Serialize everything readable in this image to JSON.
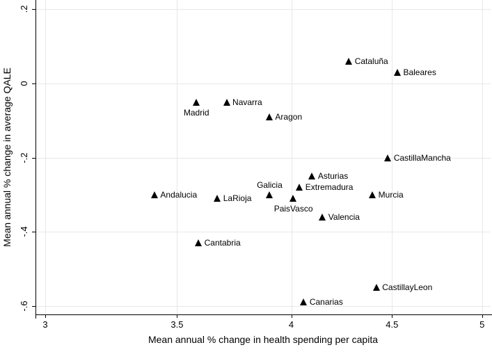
{
  "chart_data": {
    "type": "scatter",
    "title": "",
    "xlabel": "Mean annual % change in health spending per capita",
    "ylabel": "Mean annual % change in average QALE",
    "xscale": "log",
    "yscale": "linear",
    "xlim": [
      2.966,
      5.05
    ],
    "ylim": [
      -0.623,
      0.225
    ],
    "grid": true,
    "gridline_color": "#e7e7e7",
    "axis_color": "#000000",
    "marker": "triangle-filled-icon",
    "marker_color": "#000000",
    "x_ticks": [
      {
        "value": 3,
        "label": "3"
      },
      {
        "value": 3.5,
        "label": "3.5"
      },
      {
        "value": 4,
        "label": "4"
      },
      {
        "value": 4.5,
        "label": "4.5"
      },
      {
        "value": 5,
        "label": "5"
      }
    ],
    "y_ticks": [
      {
        "value": 0.2,
        "label": ".2"
      },
      {
        "value": 0,
        "label": "0"
      },
      {
        "value": -0.2,
        "label": "-.2"
      },
      {
        "value": -0.4,
        "label": "-.4"
      },
      {
        "value": -0.6,
        "label": "-.6"
      }
    ],
    "points": [
      {
        "name": "Cataluña",
        "x": 4.28,
        "y": 0.06,
        "label_position": "right"
      },
      {
        "name": "Baleares",
        "x": 4.53,
        "y": 0.03,
        "label_position": "right"
      },
      {
        "name": "Madrid",
        "x": 3.58,
        "y": -0.05,
        "label_position": "below"
      },
      {
        "name": "Navarra",
        "x": 3.71,
        "y": -0.05,
        "label_position": "right"
      },
      {
        "name": "Aragon",
        "x": 3.9,
        "y": -0.09,
        "label_position": "right"
      },
      {
        "name": "CastillaMancha",
        "x": 4.48,
        "y": -0.2,
        "label_position": "right"
      },
      {
        "name": "Asturias",
        "x": 4.1,
        "y": -0.25,
        "label_position": "right"
      },
      {
        "name": "Extremadura",
        "x": 4.04,
        "y": -0.28,
        "label_position": "right"
      },
      {
        "name": "Galicia",
        "x": 3.9,
        "y": -0.3,
        "label_position": "above"
      },
      {
        "name": "Murcia",
        "x": 4.4,
        "y": -0.3,
        "label_position": "right"
      },
      {
        "name": "Andalucia",
        "x": 3.41,
        "y": -0.3,
        "label_position": "right"
      },
      {
        "name": "LaRioja",
        "x": 3.67,
        "y": -0.31,
        "label_position": "right"
      },
      {
        "name": "PaisVasco",
        "x": 4.01,
        "y": -0.31,
        "label_position": "below"
      },
      {
        "name": "Valencia",
        "x": 4.15,
        "y": -0.36,
        "label_position": "right"
      },
      {
        "name": "Cantabria",
        "x": 3.59,
        "y": -0.43,
        "label_position": "right"
      },
      {
        "name": "CastillayLeon",
        "x": 4.42,
        "y": -0.55,
        "label_position": "right"
      },
      {
        "name": "Canarias",
        "x": 4.06,
        "y": -0.59,
        "label_position": "right"
      }
    ]
  }
}
